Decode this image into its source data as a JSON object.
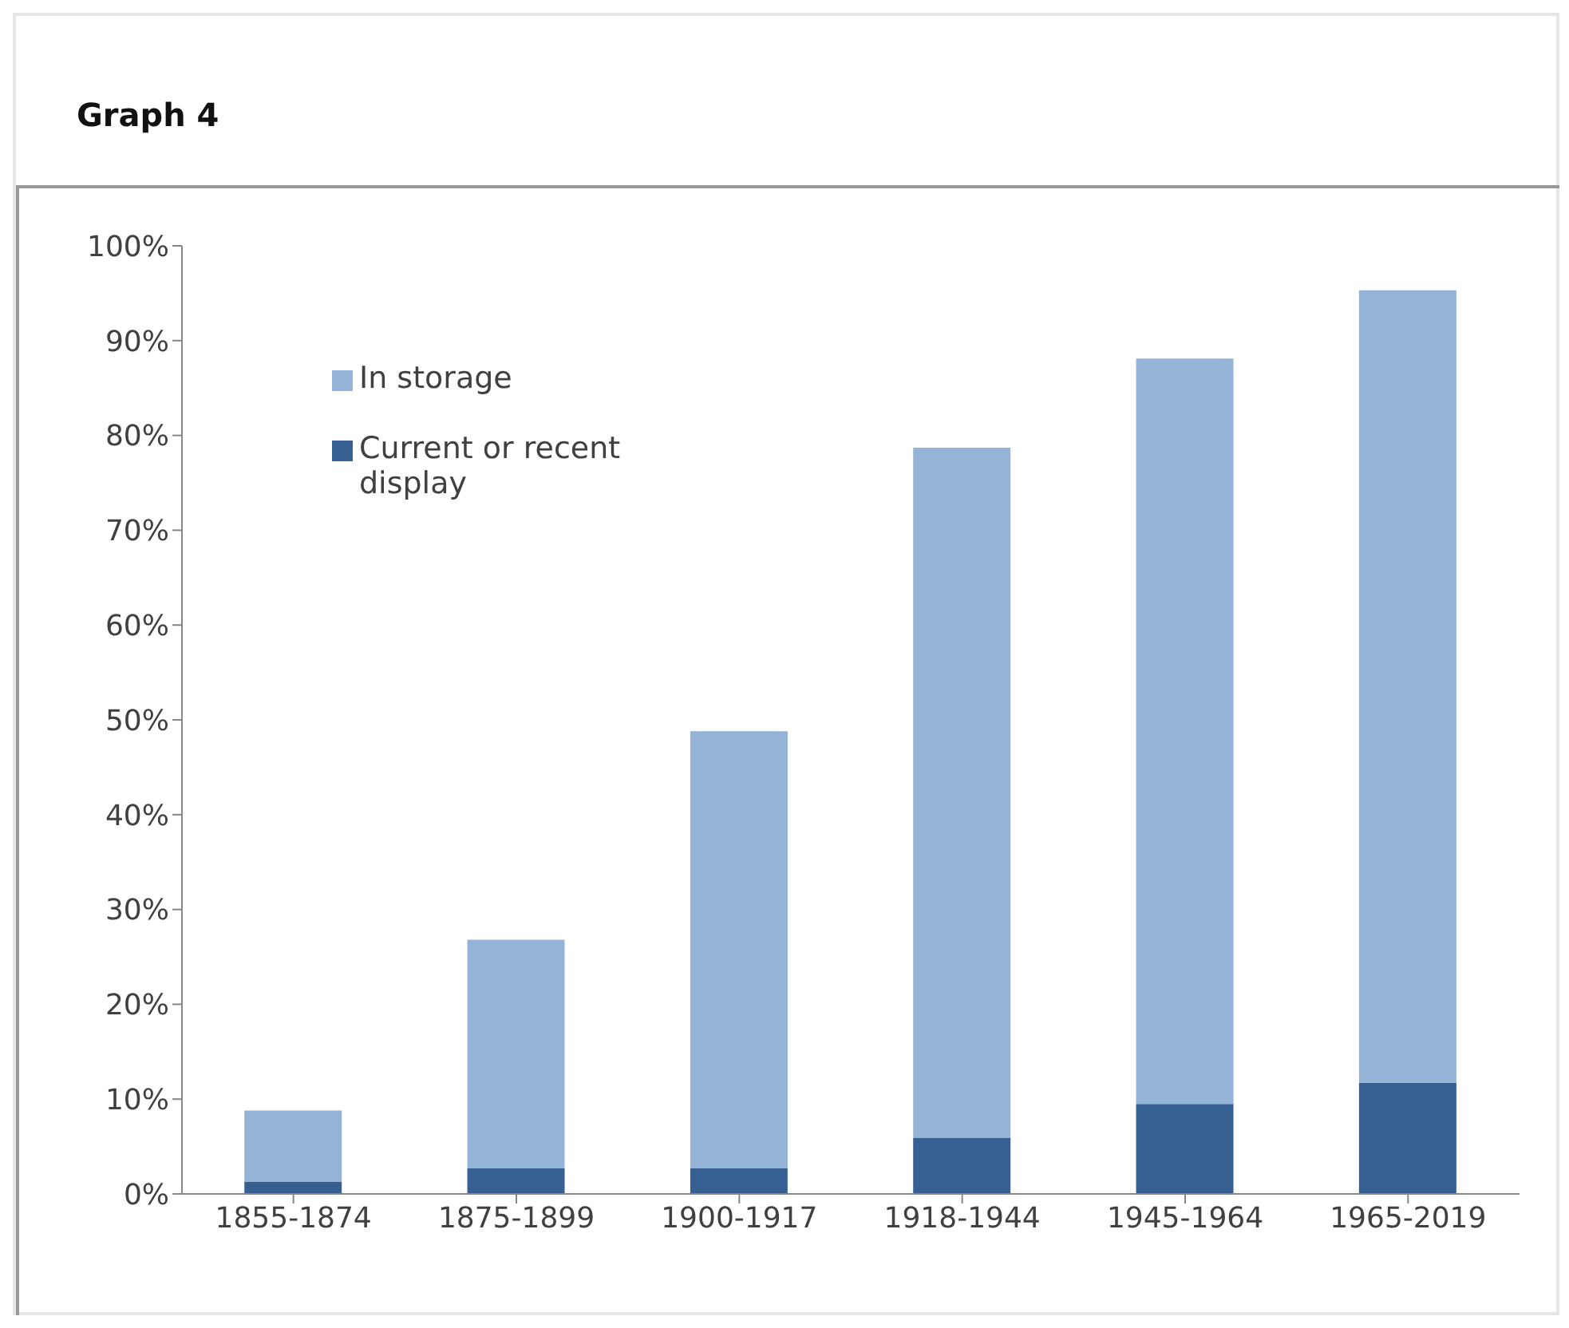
{
  "chart_data": {
    "type": "bar",
    "title": "Graph 4",
    "categories": [
      "1855-1874",
      "1875-1899",
      "1900-1917",
      "1918-1944",
      "1945-1964",
      "1965-2019"
    ],
    "stacked": true,
    "series": [
      {
        "name": "Current or recent display",
        "color": "#376092",
        "values": [
          1.3,
          2.7,
          2.7,
          5.9,
          9.5,
          11.7
        ]
      },
      {
        "name": "In storage",
        "color": "#95b3d7",
        "values": [
          7.5,
          24.1,
          46.1,
          72.8,
          78.6,
          83.6
        ]
      }
    ],
    "ylim": [
      0,
      100
    ],
    "yticks": [
      {
        "value": 0,
        "label": "0%"
      },
      {
        "value": 10,
        "label": "10%"
      },
      {
        "value": 20,
        "label": "20%"
      },
      {
        "value": 30,
        "label": "30%"
      },
      {
        "value": 40,
        "label": "40%"
      },
      {
        "value": 50,
        "label": "50%"
      },
      {
        "value": 60,
        "label": "60%"
      },
      {
        "value": 70,
        "label": "70%"
      },
      {
        "value": 80,
        "label": "80%"
      },
      {
        "value": 90,
        "label": "90%"
      },
      {
        "value": 100,
        "label": "100%"
      }
    ],
    "grid": false,
    "legend": "top left"
  }
}
